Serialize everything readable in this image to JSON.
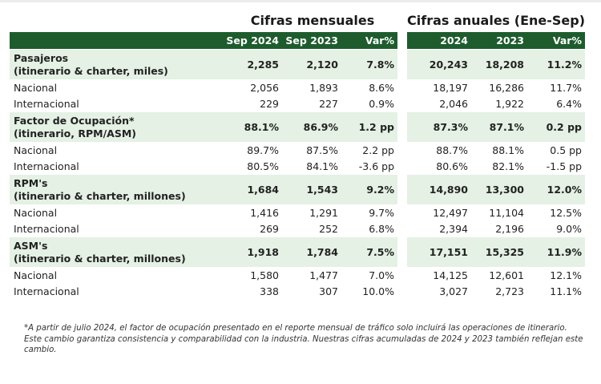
{
  "headers": {
    "monthly_group": "Cifras mensuales",
    "annual_group": "Cifras anuales (Ene-Sep)",
    "monthly_cols": [
      "Sep 2024",
      "Sep 2023",
      "Var%"
    ],
    "annual_cols": [
      "2024",
      "2023",
      "Var%"
    ]
  },
  "rows": [
    {
      "label": "Pasajeros\n(itinerario & charter, miles)",
      "type": "main",
      "values": [
        "2,285",
        "2,120",
        "7.8%",
        "20,243",
        "18,208",
        "11.2%"
      ]
    },
    {
      "label": "Nacional",
      "type": "sub",
      "values": [
        "2,056",
        "1,893",
        "8.6%",
        "18,197",
        "16,286",
        "11.7%"
      ]
    },
    {
      "label": "Internacional",
      "type": "sub",
      "values": [
        "229",
        "227",
        "0.9%",
        "2,046",
        "1,922",
        "6.4%"
      ]
    },
    {
      "label": "Factor de Ocupación*\n(itinerario, RPM/ASM)",
      "type": "main",
      "values": [
        "88.1%",
        "86.9%",
        "1.2 pp",
        "87.3%",
        "87.1%",
        "0.2 pp"
      ]
    },
    {
      "label": "Nacional",
      "type": "sub",
      "values": [
        "89.7%",
        "87.5%",
        "2.2 pp",
        "88.7%",
        "88.1%",
        "0.5 pp"
      ]
    },
    {
      "label": "Internacional",
      "type": "sub",
      "values": [
        "80.5%",
        "84.1%",
        "-3.6 pp",
        "80.6%",
        "82.1%",
        "-1.5 pp"
      ]
    },
    {
      "label": "RPM's\n(itinerario & charter, millones)",
      "type": "main",
      "values": [
        "1,684",
        "1,543",
        "9.2%",
        "14,890",
        "13,300",
        "12.0%"
      ]
    },
    {
      "label": "Nacional",
      "type": "sub",
      "values": [
        "1,416",
        "1,291",
        "9.7%",
        "12,497",
        "11,104",
        "12.5%"
      ]
    },
    {
      "label": "Internacional",
      "type": "sub",
      "values": [
        "269",
        "252",
        "6.8%",
        "2,394",
        "2,196",
        "9.0%"
      ]
    },
    {
      "label": "ASM's\n(itinerario & charter, millones)",
      "type": "main",
      "values": [
        "1,918",
        "1,784",
        "7.5%",
        "17,151",
        "15,325",
        "11.9%"
      ]
    },
    {
      "label": "Nacional",
      "type": "sub",
      "values": [
        "1,580",
        "1,477",
        "7.0%",
        "14,125",
        "12,601",
        "12.1%"
      ]
    },
    {
      "label": "Internacional",
      "type": "sub",
      "values": [
        "338",
        "307",
        "10.0%",
        "3,027",
        "2,723",
        "11.1%"
      ]
    }
  ],
  "footnote": "*A partir de julio 2024, el factor de ocupación presentado en el reporte mensual de tráfico solo incluirá las operaciones de itinerario. Este cambio garantiza consistencia y comparabilidad con la industria. Nuestras cifras acumuladas de 2024 y 2023 también reflejan este cambio.",
  "colors": {
    "header_bg": "#1e5c2e",
    "main_row_bg": "#e4f1e4",
    "sub_row_bg": "#ffffff"
  }
}
